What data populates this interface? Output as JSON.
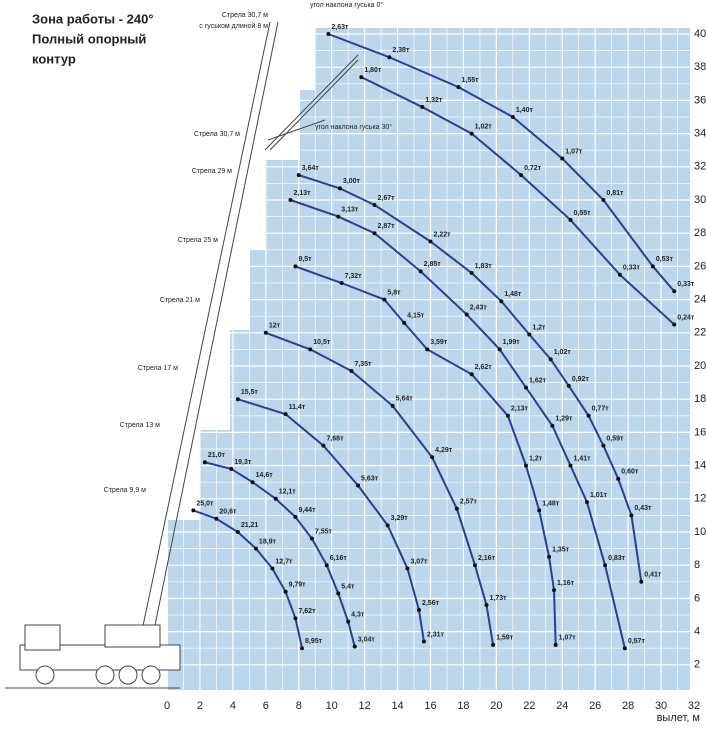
{
  "chart_data": {
    "type": "line",
    "title": [
      "Зона работы - 240°",
      "Полный опорный",
      "контур"
    ],
    "x_label": "вылет, м",
    "annotations": [
      "Стрела 30,7 м",
      "с гуськом длиной 8 м"
    ],
    "xlim": [
      0,
      32
    ],
    "xticks": [
      0,
      2,
      4,
      6,
      8,
      10,
      12,
      14,
      16,
      18,
      20,
      22,
      24,
      26,
      28,
      30,
      32
    ],
    "ylim": [
      0,
      40
    ],
    "yticks": [
      2,
      4,
      6,
      8,
      10,
      12,
      14,
      16,
      18,
      20,
      22,
      24,
      26,
      28,
      30,
      32,
      34,
      36,
      38,
      40
    ],
    "grid": true,
    "color": "#2b3f91",
    "series": [
      {
        "name": "угол наклона гуська 0°",
        "x": [
          9.8,
          13.5,
          17.7,
          21.0,
          24.0,
          26.5,
          29.5,
          30.8
        ],
        "y": [
          40,
          38.6,
          36.8,
          35.0,
          32.5,
          30.0,
          26.0,
          24.5
        ],
        "labels": [
          "2,63т",
          "2,38т",
          "1,55т",
          "1,40т",
          "1,07т",
          "0,81т",
          "0,53т",
          "0,33т"
        ]
      },
      {
        "name": "угол наклона гуська 30°",
        "x": [
          11.8,
          15.5,
          18.5,
          21.5,
          24.5,
          27.5,
          30.8
        ],
        "y": [
          37.4,
          35.6,
          34.0,
          31.5,
          28.8,
          25.5,
          22.5
        ],
        "labels": [
          "1,80т",
          "1,32т",
          "1,02т",
          "0,72т",
          "0,55т",
          "0,33т",
          "0,24т"
        ]
      },
      {
        "name": "Стрела 30,7 м",
        "x": [
          8.0,
          10.5,
          12.6,
          16.0,
          18.5,
          20.3,
          22.0,
          23.3,
          24.4,
          25.6,
          26.5,
          27.4,
          28.2,
          28.8
        ],
        "y": [
          31.5,
          30.7,
          29.7,
          27.5,
          25.6,
          23.9,
          21.9,
          20.4,
          18.8,
          17.0,
          15.2,
          13.2,
          11.0,
          7.0
        ],
        "labels": [
          "3,64т",
          "3,00т",
          "2,67т",
          "2,22т",
          "1,83т",
          "1,48т",
          "1,2т",
          "1,02т",
          "0,92т",
          "0,77т",
          "0,59т",
          "0,60т",
          "0,43т",
          "0,41т"
        ]
      },
      {
        "name": "Стрела 29 м",
        "x": [
          7.5,
          10.4,
          12.6,
          15.4,
          18.2,
          20.2,
          21.8,
          23.4,
          24.5,
          25.5,
          26.6,
          27.8
        ],
        "y": [
          30.0,
          29.0,
          28.0,
          25.7,
          23.1,
          21.0,
          18.7,
          16.4,
          14.0,
          11.8,
          8.0,
          3.0
        ],
        "labels": [
          "2,13т",
          "3,13т",
          "2,87т",
          "2,85т",
          "2,43т",
          "1,99т",
          "1,62т",
          "1,29т",
          "1,41т",
          "1,01т",
          "0,83т",
          "0,57т"
        ]
      },
      {
        "name": "Стрела 25 м",
        "x": [
          7.8,
          10.6,
          13.2,
          14.4,
          15.8,
          18.5,
          20.7,
          21.8,
          22.6,
          23.2,
          23.5,
          23.6
        ],
        "y": [
          26.0,
          25.0,
          24.0,
          22.6,
          21.0,
          19.5,
          17.0,
          14.0,
          11.3,
          8.5,
          6.5,
          3.2
        ],
        "labels": [
          "9,5т",
          "7,32т",
          "5,8т",
          "4,15т",
          "3,59т",
          "2,62т",
          "2,13т",
          "1,2т",
          "1,48т",
          "1,35т",
          "1,16т",
          "1,07т"
        ]
      },
      {
        "name": "Стрела 21 м",
        "x": [
          6.0,
          8.7,
          11.2,
          13.7,
          16.1,
          17.6,
          18.7,
          19.4,
          19.8
        ],
        "y": [
          22.0,
          21.0,
          19.7,
          17.6,
          14.5,
          11.4,
          8.0,
          5.6,
          3.2
        ],
        "labels": [
          "12т",
          "10,5т",
          "7,35т",
          "5,64т",
          "4,29т",
          "2,57т",
          "2,16т",
          "1,73т",
          "1,59т"
        ]
      },
      {
        "name": "Стрела 17 м",
        "x": [
          4.3,
          7.2,
          9.5,
          11.6,
          13.4,
          14.6,
          15.3,
          15.6
        ],
        "y": [
          18.0,
          17.1,
          15.2,
          12.8,
          10.4,
          7.8,
          5.3,
          3.4
        ],
        "labels": [
          "15,5т",
          "11,4т",
          "7,68т",
          "5,63т",
          "3,29т",
          "3,07т",
          "2,56т",
          "2,31т"
        ]
      },
      {
        "name": "Стрела 13 м",
        "x": [
          2.3,
          3.9,
          5.2,
          6.6,
          7.8,
          8.8,
          9.7,
          10.4,
          11.0,
          11.4
        ],
        "y": [
          14.2,
          13.8,
          13.0,
          12.0,
          10.9,
          9.6,
          8.0,
          6.3,
          4.6,
          3.1
        ],
        "labels": [
          "21,0т",
          "19,3т",
          "14,6т",
          "12,1т",
          "9,44т",
          "7,55т",
          "6,16т",
          "5,4т",
          "4,3т",
          "3,04т"
        ]
      },
      {
        "name": "Стрела 9,9 м",
        "x": [
          1.6,
          3.0,
          4.3,
          5.4,
          6.4,
          7.2,
          7.8,
          8.2
        ],
        "y": [
          11.3,
          10.8,
          10.0,
          9.0,
          7.8,
          6.4,
          4.8,
          3.0
        ],
        "labels": [
          "25,0т",
          "20,6т",
          "21,21",
          "18,9т",
          "12,7т",
          "9,79т",
          "7,62т",
          "8,95т"
        ]
      }
    ]
  }
}
